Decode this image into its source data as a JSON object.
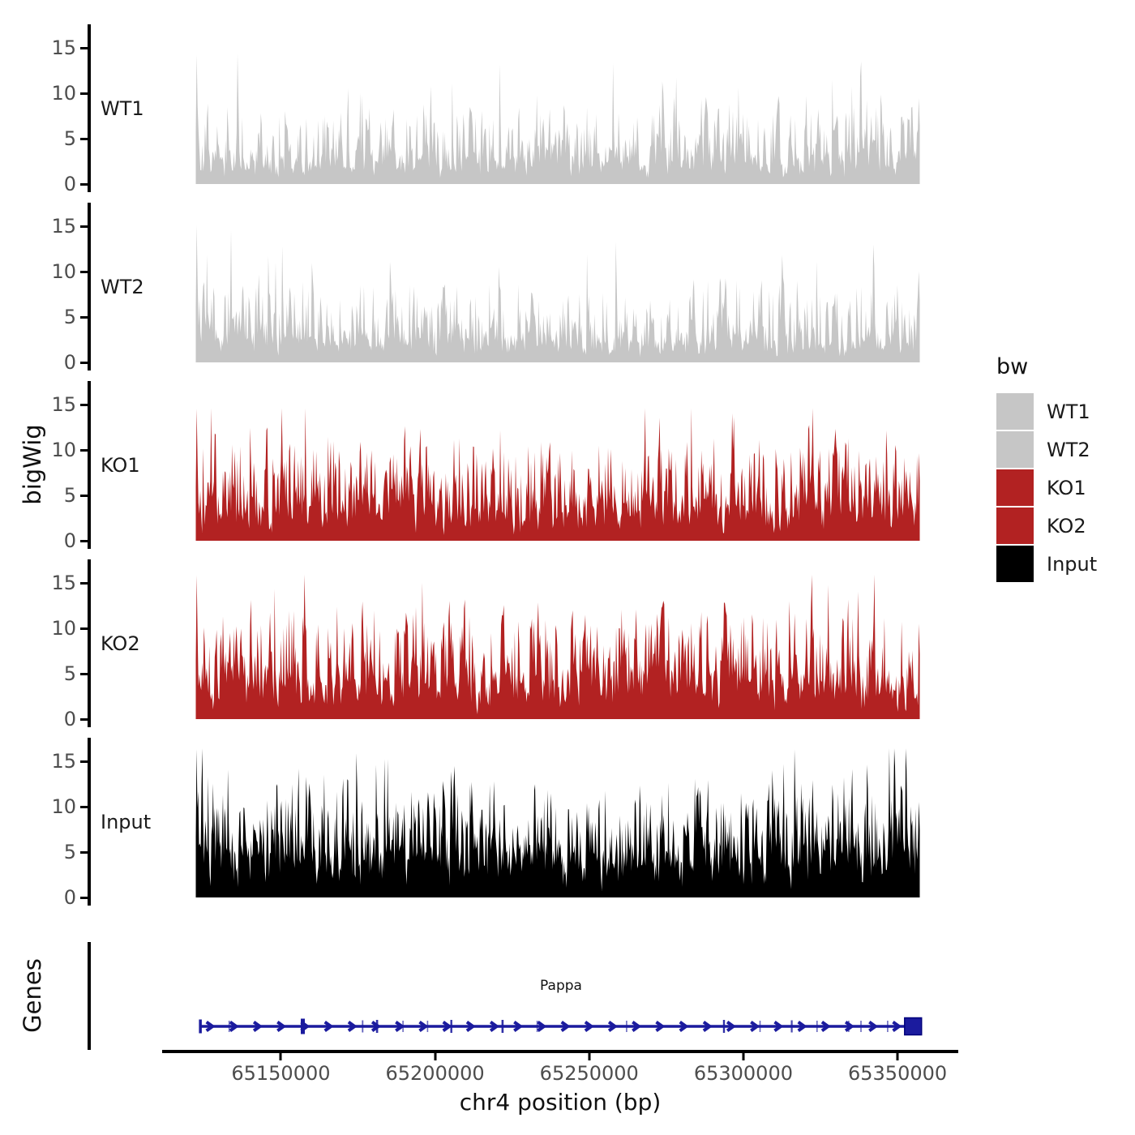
{
  "figure": {
    "y_axis_title": "bigWig",
    "genes_axis_title": "Genes",
    "legend": {
      "title": "bw",
      "entries": [
        {
          "label": "WT1",
          "color": "#c6c6c6"
        },
        {
          "label": "WT2",
          "color": "#c6c6c6"
        },
        {
          "label": "KO1",
          "color": "#b22222"
        },
        {
          "label": "KO2",
          "color": "#b22222"
        },
        {
          "label": "Input",
          "color": "#000000"
        }
      ]
    }
  },
  "chart_data": {
    "type": "area",
    "title": "",
    "xlabel": "chr4 position (bp)",
    "ylabel": "bigWig",
    "legend_position": "right",
    "x_axis": {
      "ticks": [
        {
          "value": 65150000,
          "label": "65150000"
        },
        {
          "value": 65200000,
          "label": "65200000"
        },
        {
          "value": 65250000,
          "label": "65250000"
        },
        {
          "value": 65300000,
          "label": "65300000"
        },
        {
          "value": 65350000,
          "label": "65350000"
        }
      ],
      "panel_range": [
        65111500,
        65369700
      ],
      "data_range": [
        65122400,
        65357200
      ]
    },
    "y_axis": {
      "ticks": [
        0,
        5,
        10,
        15
      ],
      "tick_labels": [
        "0",
        "5",
        "10",
        "15"
      ],
      "display_max": 17.6
    },
    "tracks": [
      {
        "name": "WT1",
        "color": "#c6c6c6",
        "max_peak": 14.3,
        "gen": {
          "seed": 101,
          "n": 780,
          "noise": 1.8,
          "base": 6.5,
          "spike_prob": 0.05,
          "spike_amp": 6.5
        }
      },
      {
        "name": "WT2",
        "color": "#c6c6c6",
        "max_peak": 15.2,
        "gen": {
          "seed": 202,
          "n": 780,
          "noise": 1.8,
          "base": 6.5,
          "spike_prob": 0.05,
          "spike_amp": 6.8
        }
      },
      {
        "name": "KO1",
        "color": "#b22222",
        "max_peak": 14.6,
        "gen": {
          "seed": 303,
          "n": 800,
          "noise": 2.8,
          "base": 8.0,
          "spike_prob": 0.06,
          "spike_amp": 6.5
        }
      },
      {
        "name": "KO2",
        "color": "#b22222",
        "max_peak": 15.9,
        "gen": {
          "seed": 404,
          "n": 800,
          "noise": 3.0,
          "base": 8.5,
          "spike_prob": 0.06,
          "spike_amp": 7.0
        }
      },
      {
        "name": "Input",
        "color": "#000000",
        "max_peak": 16.4,
        "gen": {
          "seed": 505,
          "n": 880,
          "noise": 4.0,
          "base": 7.5,
          "spike_prob": 0.09,
          "spike_amp": 7.0
        }
      }
    ],
    "gene_track": {
      "axis_label": "Genes",
      "genes": [
        {
          "name": "Pappa",
          "chrom": "chr4",
          "start": 65123900,
          "end": 65357800,
          "strand": "+",
          "color": "#1b1b9e",
          "terminal_box_start": 65352300,
          "exon_marks": [
            {
              "f": 0.0,
              "w": 3.5,
              "h": 17,
              "o": 1.0
            },
            {
              "f": 0.04,
              "w": 1.6,
              "h": 14,
              "o": 0.65
            },
            {
              "f": 0.142,
              "w": 5.0,
              "h": 19,
              "o": 1.0
            },
            {
              "f": 0.225,
              "w": 1.8,
              "h": 15,
              "o": 0.7
            },
            {
              "f": 0.245,
              "w": 2.6,
              "h": 16,
              "o": 0.9
            },
            {
              "f": 0.281,
              "w": 1.6,
              "h": 14,
              "o": 0.65
            },
            {
              "f": 0.315,
              "w": 1.6,
              "h": 14,
              "o": 0.65
            },
            {
              "f": 0.348,
              "w": 2.4,
              "h": 16,
              "o": 0.9
            },
            {
              "f": 0.419,
              "w": 2.6,
              "h": 16,
              "o": 0.9
            },
            {
              "f": 0.467,
              "w": 1.6,
              "h": 14,
              "o": 0.65
            },
            {
              "f": 0.591,
              "w": 1.6,
              "h": 14,
              "o": 0.65
            },
            {
              "f": 0.726,
              "w": 2.4,
              "h": 16,
              "o": 0.9
            },
            {
              "f": 0.776,
              "w": 1.6,
              "h": 14,
              "o": 0.65
            },
            {
              "f": 0.82,
              "w": 2.2,
              "h": 15,
              "o": 0.8
            },
            {
              "f": 0.855,
              "w": 1.6,
              "h": 14,
              "o": 0.65
            },
            {
              "f": 0.899,
              "w": 1.6,
              "h": 14,
              "o": 0.65
            },
            {
              "f": 0.916,
              "w": 1.6,
              "h": 14,
              "o": 0.65
            },
            {
              "f": 0.953,
              "w": 1.6,
              "h": 14,
              "o": 0.65
            }
          ]
        }
      ]
    }
  }
}
